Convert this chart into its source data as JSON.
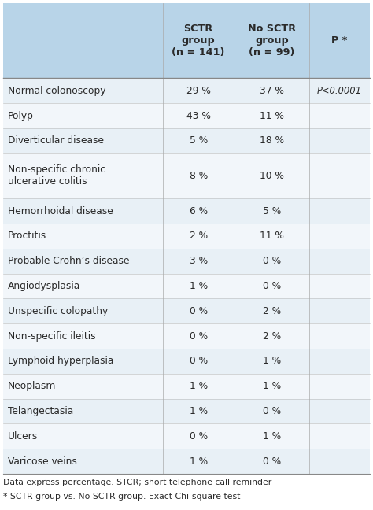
{
  "col_headers": [
    "SCTR\ngroup\n(n = 141)",
    "No SCTR\ngroup\n(n = 99)",
    "P *"
  ],
  "rows": [
    {
      "label": "Normal colonoscopy",
      "sctr": "29 %",
      "no_sctr": "37 %",
      "p": "P<0.0001"
    },
    {
      "label": "Polyp",
      "sctr": "43 %",
      "no_sctr": "11 %",
      "p": ""
    },
    {
      "label": "Diverticular disease",
      "sctr": "5 %",
      "no_sctr": "18 %",
      "p": ""
    },
    {
      "label": "Non-specific chronic\nulcerative colitis",
      "sctr": "8 %",
      "no_sctr": "10 %",
      "p": ""
    },
    {
      "label": "Hemorrhoidal disease",
      "sctr": "6 %",
      "no_sctr": "5 %",
      "p": ""
    },
    {
      "label": "Proctitis",
      "sctr": "2 %",
      "no_sctr": "11 %",
      "p": ""
    },
    {
      "label": "Probable Crohn’s disease",
      "sctr": "3 %",
      "no_sctr": "0 %",
      "p": ""
    },
    {
      "label": "Angiodysplasia",
      "sctr": "1 %",
      "no_sctr": "0 %",
      "p": ""
    },
    {
      "label": "Unspecific colopathy",
      "sctr": "0 %",
      "no_sctr": "2 %",
      "p": ""
    },
    {
      "label": "Non-specific ileitis",
      "sctr": "0 %",
      "no_sctr": "2 %",
      "p": ""
    },
    {
      "label": "Lymphoid hyperplasia",
      "sctr": "0 %",
      "no_sctr": "1 %",
      "p": ""
    },
    {
      "label": "Neoplasm",
      "sctr": "1 %",
      "no_sctr": "1 %",
      "p": ""
    },
    {
      "label": "Telangectasia",
      "sctr": "1 %",
      "no_sctr": "0 %",
      "p": ""
    },
    {
      "label": "Ulcers",
      "sctr": "0 %",
      "no_sctr": "1 %",
      "p": ""
    },
    {
      "label": "Varicose veins",
      "sctr": "1 %",
      "no_sctr": "0 %",
      "p": ""
    }
  ],
  "footer": [
    "Data express percentage. STCR; short telephone call reminder",
    "* SCTR group vs. No SCTR group. Exact Chi-square test"
  ],
  "header_bg": "#b8d4e8",
  "row_bg_odd": "#e8f0f6",
  "row_bg_even": "#f2f6fa",
  "text_color": "#2a2a2a",
  "font_size": 8.8,
  "header_font_size": 9.2,
  "footer_font_size": 7.8,
  "fig_width": 4.74,
  "fig_height": 6.48
}
